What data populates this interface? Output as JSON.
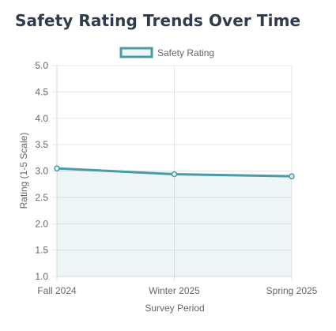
{
  "page": {
    "title": "Safety Rating Trends Over Time"
  },
  "colors": {
    "line": "#4a9ba8",
    "fill": "rgba(74,155,168,0.10)",
    "grid": "#e5e5e5",
    "text": "#666666",
    "title": "#2f3b4c"
  },
  "chart_data": {
    "type": "line",
    "title": "Safety Rating Trends Over Time",
    "xlabel": "Survey Period",
    "ylabel": "Rating (1-5 Scale)",
    "categories": [
      "Fall 2024",
      "Winter 2025",
      "Spring 2025"
    ],
    "series": [
      {
        "name": "Safety Rating",
        "values": [
          3.05,
          2.94,
          2.9
        ],
        "fill": true
      }
    ],
    "ylim": [
      1.0,
      5.0
    ],
    "yticks": [
      "1.0",
      "1.5",
      "2.0",
      "2.5",
      "3.0",
      "3.5",
      "4.0",
      "4.5",
      "5.0"
    ],
    "grid": true,
    "legend": "top-center"
  }
}
